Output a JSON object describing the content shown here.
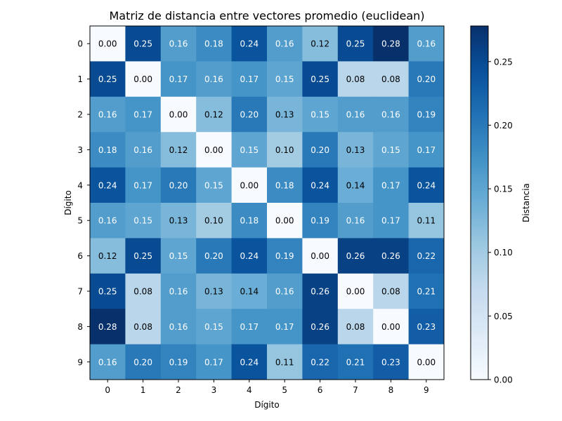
{
  "chart_data": {
    "type": "heatmap",
    "title": "Matriz de distancia entre vectores promedio (euclidean)",
    "xlabel": "Dígito",
    "ylabel": "Dígito",
    "x_categories": [
      "0",
      "1",
      "2",
      "3",
      "4",
      "5",
      "6",
      "7",
      "8",
      "9"
    ],
    "y_categories": [
      "0",
      "1",
      "2",
      "3",
      "4",
      "5",
      "6",
      "7",
      "8",
      "9"
    ],
    "values": [
      [
        0.0,
        0.25,
        0.16,
        0.18,
        0.24,
        0.16,
        0.12,
        0.25,
        0.28,
        0.16
      ],
      [
        0.25,
        0.0,
        0.17,
        0.16,
        0.17,
        0.15,
        0.25,
        0.08,
        0.08,
        0.2
      ],
      [
        0.16,
        0.17,
        0.0,
        0.12,
        0.2,
        0.13,
        0.15,
        0.16,
        0.16,
        0.19
      ],
      [
        0.18,
        0.16,
        0.12,
        0.0,
        0.15,
        0.1,
        0.2,
        0.13,
        0.15,
        0.17
      ],
      [
        0.24,
        0.17,
        0.2,
        0.15,
        0.0,
        0.18,
        0.24,
        0.14,
        0.17,
        0.24
      ],
      [
        0.16,
        0.15,
        0.13,
        0.1,
        0.18,
        0.0,
        0.19,
        0.16,
        0.17,
        0.11
      ],
      [
        0.12,
        0.25,
        0.15,
        0.2,
        0.24,
        0.19,
        0.0,
        0.26,
        0.26,
        0.22
      ],
      [
        0.25,
        0.08,
        0.16,
        0.13,
        0.14,
        0.16,
        0.26,
        0.0,
        0.08,
        0.21
      ],
      [
        0.28,
        0.08,
        0.16,
        0.15,
        0.17,
        0.17,
        0.26,
        0.08,
        0.0,
        0.23
      ],
      [
        0.16,
        0.2,
        0.19,
        0.17,
        0.24,
        0.11,
        0.22,
        0.21,
        0.23,
        0.0
      ]
    ],
    "colormap": "Blues",
    "colorbar": {
      "label": "Distancia",
      "range": [
        0.0,
        0.278
      ],
      "ticks": [
        0.0,
        0.05,
        0.1,
        0.15,
        0.2,
        0.25
      ],
      "tick_labels": [
        "0.00",
        "0.05",
        "0.10",
        "0.15",
        "0.20",
        "0.25"
      ]
    },
    "grid": false
  }
}
